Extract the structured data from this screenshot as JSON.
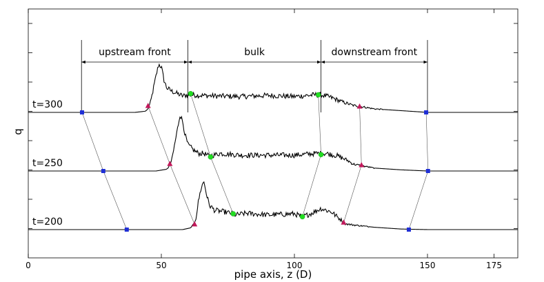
{
  "chart_data": {
    "type": "line",
    "title": "",
    "xlabel": "pipe axis, z (D)",
    "ylabel": "q",
    "xlim": [
      0,
      180
    ],
    "x_ticks": [
      0,
      50,
      100,
      150,
      175
    ],
    "grid": false,
    "legend": "none",
    "regions": [
      {
        "label": "upstream front",
        "x_start": 20,
        "x_end": 60
      },
      {
        "label": "bulk",
        "x_start": 60,
        "x_end": 110
      },
      {
        "label": "downstream front",
        "x_start": 110,
        "x_end": 150
      }
    ],
    "series": [
      {
        "name": "t=300",
        "baseline": 0,
        "profile": [
          [
            0,
            0
          ],
          [
            40,
            0
          ],
          [
            44,
            0.02
          ],
          [
            45,
            0.06
          ],
          [
            46,
            0.18
          ],
          [
            47,
            0.4
          ],
          [
            48,
            0.62
          ],
          [
            49,
            0.82
          ],
          [
            50,
            0.78
          ],
          [
            51,
            0.55
          ],
          [
            52,
            0.42
          ],
          [
            54,
            0.36
          ],
          [
            56,
            0.32
          ],
          [
            58,
            0.28
          ],
          [
            60,
            0.3
          ],
          [
            70,
            0.28
          ],
          [
            80,
            0.27
          ],
          [
            90,
            0.29
          ],
          [
            100,
            0.27
          ],
          [
            108,
            0.3
          ],
          [
            110,
            0.3
          ],
          [
            114,
            0.25
          ],
          [
            118,
            0.18
          ],
          [
            122,
            0.12
          ],
          [
            125,
            0.1
          ],
          [
            130,
            0.06
          ],
          [
            140,
            0.03
          ],
          [
            150,
            0
          ],
          [
            180,
            0
          ]
        ],
        "markers": [
          {
            "shape": "square",
            "color": "#1f2fd6",
            "x": 20.2,
            "y": 0
          },
          {
            "shape": "triangle",
            "color": "#c2185b",
            "x": 45,
            "y": 0.11
          },
          {
            "shape": "circle",
            "color": "#22dd22",
            "x": 61,
            "y": 0.32
          },
          {
            "shape": "circle",
            "color": "#22dd22",
            "x": 109,
            "y": 0.3
          },
          {
            "shape": "triangle",
            "color": "#c2185b",
            "x": 124.5,
            "y": 0.1
          },
          {
            "shape": "square",
            "color": "#1f2fd6",
            "x": 149.5,
            "y": 0
          }
        ]
      },
      {
        "name": "t=250",
        "baseline": -1,
        "profile": [
          [
            0,
            0
          ],
          [
            48,
            0
          ],
          [
            52,
            0.03
          ],
          [
            53,
            0.08
          ],
          [
            54,
            0.2
          ],
          [
            55,
            0.45
          ],
          [
            56,
            0.7
          ],
          [
            57,
            0.96
          ],
          [
            58,
            0.85
          ],
          [
            59,
            0.6
          ],
          [
            60,
            0.45
          ],
          [
            62,
            0.36
          ],
          [
            64,
            0.3
          ],
          [
            66,
            0.3
          ],
          [
            68,
            0.25
          ],
          [
            72,
            0.3
          ],
          [
            80,
            0.27
          ],
          [
            90,
            0.27
          ],
          [
            100,
            0.27
          ],
          [
            108,
            0.3
          ],
          [
            112,
            0.3
          ],
          [
            116,
            0.26
          ],
          [
            120,
            0.18
          ],
          [
            122,
            0.12
          ],
          [
            124,
            0.1
          ],
          [
            130,
            0.05
          ],
          [
            140,
            0.02
          ],
          [
            150,
            0
          ],
          [
            180,
            0
          ]
        ],
        "markers": [
          {
            "shape": "square",
            "color": "#1f2fd6",
            "x": 28.2,
            "y": 0
          },
          {
            "shape": "triangle",
            "color": "#c2185b",
            "x": 53.2,
            "y": 0.12
          },
          {
            "shape": "circle",
            "color": "#22dd22",
            "x": 68.5,
            "y": 0.24
          },
          {
            "shape": "circle",
            "color": "#22dd22",
            "x": 110,
            "y": 0.28
          },
          {
            "shape": "triangle",
            "color": "#c2185b",
            "x": 125.2,
            "y": 0.1
          },
          {
            "shape": "square",
            "color": "#1f2fd6",
            "x": 150.2,
            "y": 0
          }
        ]
      },
      {
        "name": "t=200",
        "baseline": -2,
        "profile": [
          [
            0,
            0
          ],
          [
            58,
            0
          ],
          [
            61,
            0.03
          ],
          [
            62,
            0.08
          ],
          [
            63,
            0.2
          ],
          [
            64,
            0.5
          ],
          [
            65,
            0.72
          ],
          [
            66,
            0.82
          ],
          [
            67,
            0.6
          ],
          [
            68,
            0.42
          ],
          [
            70,
            0.33
          ],
          [
            74,
            0.3
          ],
          [
            76,
            0.28
          ],
          [
            78,
            0.25
          ],
          [
            82,
            0.28
          ],
          [
            90,
            0.25
          ],
          [
            100,
            0.27
          ],
          [
            103,
            0.22
          ],
          [
            106,
            0.27
          ],
          [
            110,
            0.36
          ],
          [
            114,
            0.3
          ],
          [
            116,
            0.22
          ],
          [
            118,
            0.15
          ],
          [
            119,
            0.1
          ],
          [
            122,
            0.08
          ],
          [
            130,
            0.04
          ],
          [
            140,
            0.01
          ],
          [
            150,
            0
          ],
          [
            180,
            0
          ]
        ],
        "markers": [
          {
            "shape": "square",
            "color": "#1f2fd6",
            "x": 37,
            "y": 0
          },
          {
            "shape": "triangle",
            "color": "#c2185b",
            "x": 62.5,
            "y": 0.09
          },
          {
            "shape": "circle",
            "color": "#22dd22",
            "x": 77,
            "y": 0.27
          },
          {
            "shape": "circle",
            "color": "#22dd22",
            "x": 103,
            "y": 0.22
          },
          {
            "shape": "triangle",
            "color": "#c2185b",
            "x": 118.5,
            "y": 0.12
          },
          {
            "shape": "square",
            "color": "#1f2fd6",
            "x": 143,
            "y": 0
          }
        ]
      }
    ]
  }
}
